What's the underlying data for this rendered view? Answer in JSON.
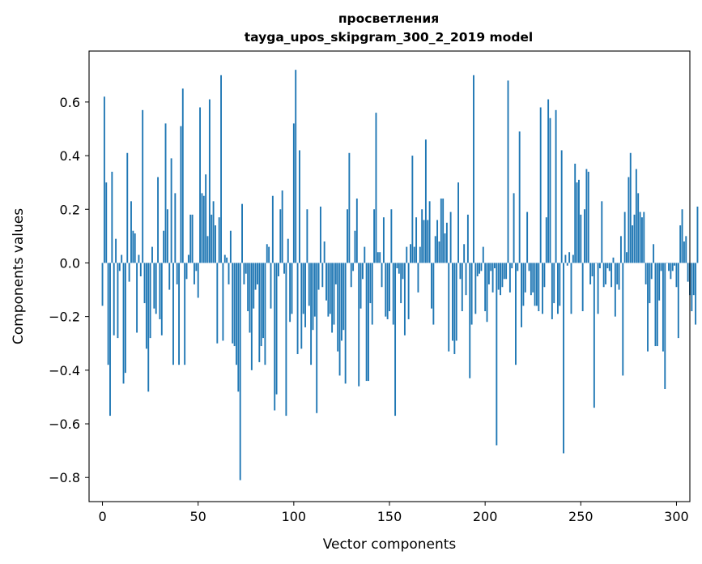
{
  "chart_data": {
    "type": "bar",
    "title_lines": [
      "просветления",
      "tayga_upos_skipgram_300_2_2019 model"
    ],
    "xlabel": "Vector components",
    "ylabel": "Components values",
    "xlim": [
      -7,
      307
    ],
    "ylim": [
      -0.89,
      0.79
    ],
    "x_ticks": [
      0,
      50,
      100,
      150,
      200,
      250,
      300
    ],
    "y_ticks": [
      -0.8,
      -0.6,
      -0.4,
      -0.2,
      0.0,
      0.2,
      0.4,
      0.6
    ],
    "y_tick_labels": [
      "−0.8",
      "−0.6",
      "−0.4",
      "−0.2",
      "0.0",
      "0.2",
      "0.4",
      "0.6"
    ],
    "grid": false,
    "bar_color": "#1f77b4",
    "values": [
      -0.16,
      0.62,
      0.3,
      -0.38,
      -0.57,
      0.34,
      -0.27,
      0.09,
      -0.28,
      -0.03,
      0.03,
      -0.45,
      -0.41,
      0.41,
      -0.07,
      0.23,
      0.12,
      0.11,
      -0.26,
      0.03,
      -0.05,
      0.57,
      -0.15,
      -0.32,
      -0.48,
      -0.28,
      0.06,
      -0.17,
      -0.19,
      0.32,
      -0.21,
      -0.27,
      0.12,
      0.52,
      0.2,
      -0.1,
      0.39,
      -0.38,
      0.26,
      -0.08,
      -0.38,
      0.51,
      0.65,
      -0.38,
      -0.06,
      0.03,
      0.18,
      0.18,
      -0.08,
      -0.03,
      -0.13,
      0.58,
      0.26,
      0.25,
      0.33,
      0.1,
      0.61,
      0.18,
      0.23,
      0.14,
      -0.3,
      0.17,
      0.7,
      -0.29,
      0.03,
      0.02,
      -0.08,
      0.12,
      -0.3,
      -0.31,
      -0.38,
      -0.48,
      -0.81,
      0.22,
      -0.08,
      -0.04,
      -0.18,
      -0.26,
      -0.4,
      -0.17,
      -0.1,
      -0.08,
      -0.37,
      -0.31,
      -0.28,
      -0.38,
      0.07,
      0.06,
      -0.17,
      0.25,
      -0.55,
      -0.49,
      -0.05,
      0.2,
      0.27,
      -0.04,
      -0.57,
      0.09,
      -0.22,
      -0.19,
      0.52,
      0.72,
      -0.34,
      0.42,
      -0.32,
      -0.19,
      -0.24,
      0.2,
      -0.16,
      -0.38,
      -0.25,
      -0.2,
      -0.56,
      -0.1,
      0.21,
      -0.09,
      0.08,
      -0.14,
      -0.2,
      -0.19,
      -0.26,
      -0.23,
      -0.08,
      -0.33,
      -0.42,
      -0.29,
      -0.25,
      -0.45,
      0.2,
      0.41,
      -0.09,
      -0.03,
      0.12,
      0.24,
      -0.46,
      -0.17,
      -0.06,
      0.06,
      -0.44,
      -0.44,
      -0.15,
      -0.23,
      0.2,
      0.56,
      0.04,
      0.04,
      -0.09,
      0.17,
      -0.2,
      -0.21,
      -0.18,
      0.2,
      -0.23,
      -0.57,
      -0.02,
      -0.04,
      -0.15,
      -0.06,
      -0.27,
      0.06,
      -0.21,
      0.07,
      0.4,
      0.06,
      0.17,
      -0.11,
      0.06,
      0.2,
      0.16,
      0.46,
      0.16,
      0.23,
      -0.17,
      -0.23,
      0.1,
      0.16,
      0.08,
      0.24,
      0.24,
      0.11,
      0.15,
      -0.33,
      0.19,
      -0.29,
      -0.34,
      -0.29,
      0.3,
      -0.06,
      -0.18,
      0.07,
      -0.12,
      0.18,
      -0.43,
      -0.23,
      0.7,
      -0.19,
      -0.05,
      -0.04,
      -0.03,
      0.06,
      -0.18,
      -0.22,
      -0.08,
      -0.03,
      -0.11,
      -0.02,
      -0.68,
      -0.1,
      -0.12,
      -0.09,
      -0.06,
      -0.06,
      0.68,
      -0.11,
      -0.02,
      0.26,
      -0.38,
      -0.03,
      0.49,
      -0.24,
      -0.16,
      -0.11,
      0.19,
      -0.03,
      -0.12,
      -0.11,
      -0.16,
      -0.16,
      -0.18,
      0.58,
      -0.19,
      -0.09,
      0.17,
      0.61,
      0.54,
      -0.21,
      -0.15,
      0.57,
      -0.19,
      -0.16,
      0.42,
      -0.71,
      0.03,
      -0.01,
      0.04,
      -0.19,
      0.03,
      0.37,
      0.3,
      0.31,
      0.18,
      -0.18,
      0.2,
      0.35,
      0.34,
      -0.08,
      -0.05,
      -0.54,
      0.0,
      -0.19,
      -0.02,
      0.23,
      -0.09,
      -0.08,
      -0.02,
      -0.03,
      -0.09,
      0.02,
      -0.2,
      -0.08,
      -0.1,
      0.1,
      -0.42,
      0.19,
      0.04,
      0.32,
      0.41,
      0.14,
      0.18,
      0.35,
      0.26,
      0.19,
      0.17,
      0.19,
      -0.08,
      -0.33,
      -0.15,
      -0.06,
      0.07,
      -0.31,
      -0.31,
      -0.14,
      -0.03,
      -0.33,
      -0.47,
      0.0,
      -0.03,
      -0.06,
      -0.03,
      -0.01,
      -0.09,
      -0.28,
      0.14,
      0.2,
      0.08,
      0.1,
      -0.07,
      -0.12,
      -0.18,
      -0.12,
      -0.23,
      0.21
    ]
  }
}
